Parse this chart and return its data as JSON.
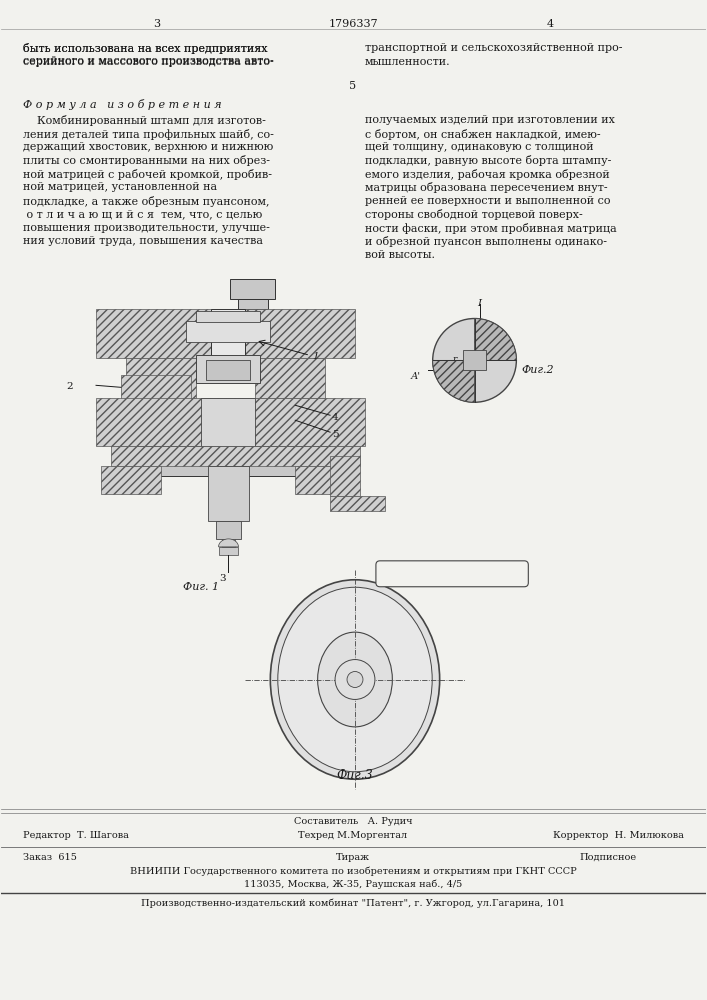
{
  "bg_color": "#f2f2ee",
  "text_color": "#1a1a1a",
  "top_text_left": "быть использована на всех предприятиях\nсерийного и массового производства авто-",
  "top_text_right": "транспортной и сельскохозяйственной про-\nмышленности.",
  "formula_title": "Ф о р м у л а   и з о б р е т е н и я",
  "formula_text_left": "    Комбинированный штамп для изготов-\nления деталей типа профильных шайб, со-\nдержащий хвостовик, верхнюю и нижнюю\nплиты со смонтированными на них обрез-\nной матрицей с рабочей кромкой, пробив-\nной матрицей, установленной на\nподкладке, а также обрезным пуансоном,\n о т л и ч а ю щ и й с я  тем, что, с целью\nповышения производительности, улучше-\nния условий труда, повышения качества",
  "formula_text_right": "получаемых изделий при изготовлении их\nс бортом, он снабжен накладкой, имею-\nщей толщину, одинаковую с толщиной\nподкладки, равную высоте борта штампу-\nемого изделия, рабочая кромка обрезной\nматрицы образована пересечением внут-\nренней ее поверхности и выполненной со\nстороны свободной торцевой поверх-\nности фаски, при этом пробивная матрица\nи обрезной пуансон выполнены одинако-\nвой высоты.",
  "fig1_label": "Фиг. 1",
  "fig2_label": "Фиг.2",
  "fig3_label": "Фиг.3",
  "footer_editor": "Редактор  Т. Шагова",
  "footer_composer": "Составитель   А. Рудич",
  "footer_corrector": "Корректор  Н. Милюкова",
  "footer_tech": "Техред М.Моргентал",
  "footer_order": "Заказ  615",
  "footer_tirazh": "Тираж",
  "footer_podpisnoe": "Подписное",
  "footer_vniiipi": "ВНИИПИ Государственного комитета по изобретениям и открытиям при ГКНТ СССР",
  "footer_address": "113035, Москва, Ж-35, Раушская наб., 4/5",
  "footer_proizv": "Производственно-издательский комбинат \"Патент\", г. Ужгород, ул.Гагарина, 101"
}
